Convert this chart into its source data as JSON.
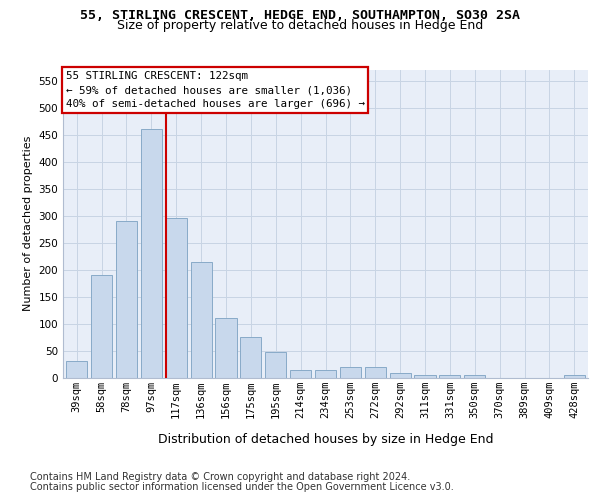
{
  "title1": "55, STIRLING CRESCENT, HEDGE END, SOUTHAMPTON, SO30 2SA",
  "title2": "Size of property relative to detached houses in Hedge End",
  "xlabel": "Distribution of detached houses by size in Hedge End",
  "ylabel": "Number of detached properties",
  "categories": [
    "39sqm",
    "58sqm",
    "78sqm",
    "97sqm",
    "117sqm",
    "136sqm",
    "156sqm",
    "175sqm",
    "195sqm",
    "214sqm",
    "234sqm",
    "253sqm",
    "272sqm",
    "292sqm",
    "311sqm",
    "331sqm",
    "350sqm",
    "370sqm",
    "389sqm",
    "409sqm",
    "428sqm"
  ],
  "values": [
    30,
    190,
    290,
    460,
    295,
    215,
    110,
    75,
    48,
    13,
    13,
    20,
    20,
    8,
    5,
    5,
    5,
    0,
    0,
    0,
    4
  ],
  "bar_color": "#c8d8ec",
  "bar_edge_color": "#88aac8",
  "grid_color": "#c8d4e4",
  "background_color": "#e8eef8",
  "annotation_box_text": "55 STIRLING CRESCENT: 122sqm\n← 59% of detached houses are smaller (1,036)\n40% of semi-detached houses are larger (696) →",
  "annotation_box_facecolor": "#ffffff",
  "annotation_box_edgecolor": "#cc0000",
  "property_line_color": "#cc0000",
  "property_bar_index": 4,
  "ylim_max": 570,
  "yticks": [
    0,
    50,
    100,
    150,
    200,
    250,
    300,
    350,
    400,
    450,
    500,
    550
  ],
  "footnote1": "Contains HM Land Registry data © Crown copyright and database right 2024.",
  "footnote2": "Contains public sector information licensed under the Open Government Licence v3.0.",
  "title1_fontsize": 9.5,
  "title2_fontsize": 9.0,
  "ylabel_fontsize": 8.0,
  "xlabel_fontsize": 9.0,
  "annot_fontsize": 7.8,
  "tick_fontsize": 7.5,
  "footnote_fontsize": 7.0
}
